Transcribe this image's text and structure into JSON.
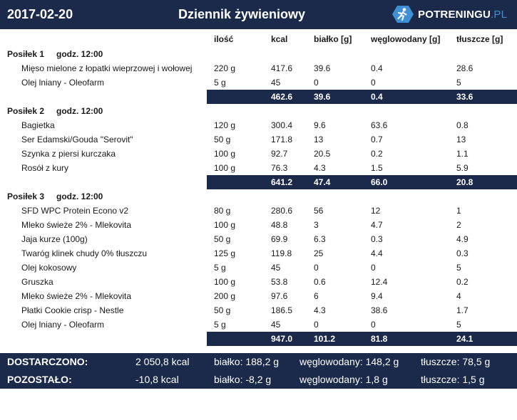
{
  "header": {
    "date": "2017-02-20",
    "title": "Dziennik żywieniowy",
    "brand": {
      "name_main": "POTRENINGU",
      "name_suffix": ".PL",
      "icon": "runner-icon"
    }
  },
  "columns": [
    "ilość",
    "kcal",
    "białko [g]",
    "węglowodany [g]",
    "tłuszcze [g]"
  ],
  "meals": [
    {
      "name": "Posiłek 1",
      "time": "godz. 12:00",
      "items": [
        {
          "name": "Mięso mielone z łopatki wieprzowej i wołowej",
          "qty": "220 g",
          "kcal": "417.6",
          "protein": "39.6",
          "carbs": "0.4",
          "fat": "28.6"
        },
        {
          "name": "Olej lniany - Oleofarm",
          "qty": "5 g",
          "kcal": "45",
          "protein": "0",
          "carbs": "0",
          "fat": "5"
        }
      ],
      "total": {
        "kcal": "462.6",
        "protein": "39.6",
        "carbs": "0.4",
        "fat": "33.6"
      }
    },
    {
      "name": "Posiłek 2",
      "time": "godz. 12:00",
      "items": [
        {
          "name": "Bagietka",
          "qty": "120 g",
          "kcal": "300.4",
          "protein": "9.6",
          "carbs": "63.6",
          "fat": "0.8"
        },
        {
          "name": "Ser Edamski/Gouda \"Serovit\"",
          "qty": "50 g",
          "kcal": "171.8",
          "protein": "13",
          "carbs": "0.7",
          "fat": "13"
        },
        {
          "name": "Szynka z piersi kurczaka",
          "qty": "100 g",
          "kcal": "92.7",
          "protein": "20.5",
          "carbs": "0.2",
          "fat": "1.1"
        },
        {
          "name": "Rosół z kury",
          "qty": "100 g",
          "kcal": "76.3",
          "protein": "4.3",
          "carbs": "1.5",
          "fat": "5.9"
        }
      ],
      "total": {
        "kcal": "641.2",
        "protein": "47.4",
        "carbs": "66.0",
        "fat": "20.8"
      }
    },
    {
      "name": "Posiłek 3",
      "time": "godz. 12:00",
      "items": [
        {
          "name": "SFD WPC Protein Econo v2",
          "qty": "80 g",
          "kcal": "280.6",
          "protein": "56",
          "carbs": "12",
          "fat": "1"
        },
        {
          "name": "Mleko świeże 2% - Mlekovita",
          "qty": "100 g",
          "kcal": "48.8",
          "protein": "3",
          "carbs": "4.7",
          "fat": "2"
        },
        {
          "name": "Jaja kurze (100g)",
          "qty": "50 g",
          "kcal": "69.9",
          "protein": "6.3",
          "carbs": "0.3",
          "fat": "4.9"
        },
        {
          "name": "Twaróg klinek chudy 0% tłuszczu",
          "qty": "125 g",
          "kcal": "119.8",
          "protein": "25",
          "carbs": "4.4",
          "fat": "0.3"
        },
        {
          "name": "Olej kokosowy",
          "qty": "5 g",
          "kcal": "45",
          "protein": "0",
          "carbs": "0",
          "fat": "5"
        },
        {
          "name": "Gruszka",
          "qty": "100 g",
          "kcal": "53.8",
          "protein": "0.6",
          "carbs": "12.4",
          "fat": "0.2"
        },
        {
          "name": "Mleko świeże 2% - Mlekovita",
          "qty": "200 g",
          "kcal": "97.6",
          "protein": "6",
          "carbs": "9.4",
          "fat": "4"
        },
        {
          "name": "Płatki Cookie crisp - Nestle",
          "qty": "50 g",
          "kcal": "186.5",
          "protein": "4.3",
          "carbs": "38.6",
          "fat": "1.7"
        },
        {
          "name": "Olej lniany - Oleofarm",
          "qty": "5 g",
          "kcal": "45",
          "protein": "0",
          "carbs": "0",
          "fat": "5"
        }
      ],
      "total": {
        "kcal": "947.0",
        "protein": "101.2",
        "carbs": "81.8",
        "fat": "24.1"
      }
    }
  ],
  "summary": {
    "delivered": {
      "label": "DOSTARCZONO:",
      "kcal": "2 050,8 kcal",
      "protein": "białko: 188,2 g",
      "carbs": "węglowodany: 148,2 g",
      "fat": "tłuszcze: 78,5 g"
    },
    "remaining": {
      "label": "POZOSTAŁO:",
      "kcal": "-10,8 kcal",
      "protein": "białko: -8,2 g",
      "carbs": "węglowodany: 1,8 g",
      "fat": "tłuszcze: 1,5 g"
    }
  },
  "colors": {
    "navy": "#1b2a4a",
    "accent": "#3f8fd4",
    "text": "#1a1a1a",
    "background": "#ffffff"
  }
}
